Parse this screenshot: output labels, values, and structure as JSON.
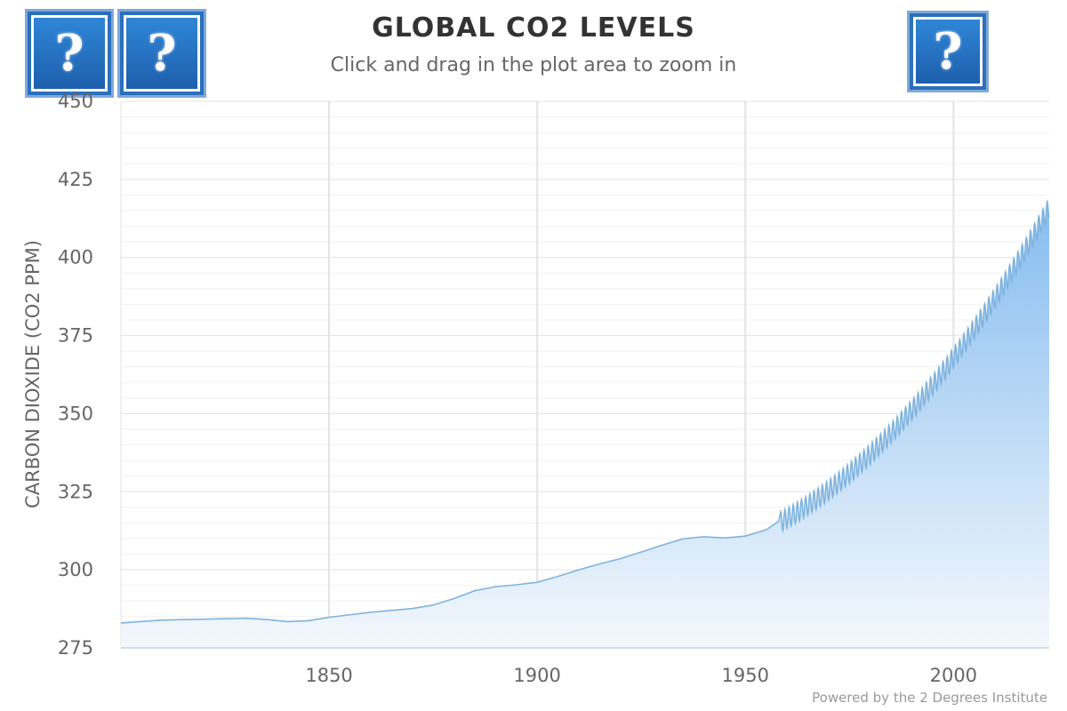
{
  "chart_data": {
    "type": "area",
    "title": "GLOBAL CO2 LEVELS",
    "subtitle": "Click and drag in the plot area to zoom in",
    "ylabel": "CARBON DIOXIDE (CO2 PPM)",
    "xlabel": "",
    "xlim": [
      1800,
      2023
    ],
    "ylim": [
      275,
      450
    ],
    "x_ticks": [
      1850,
      1900,
      1950,
      2000
    ],
    "y_ticks": [
      275,
      300,
      325,
      350,
      375,
      400,
      425,
      450
    ],
    "grid": true,
    "colors": {
      "line": "#7fb3de",
      "area_top": "#86bcf0",
      "area_bottom": "#f4f8fc",
      "grid_major": "#e3e3e3",
      "grid_minor": "#f1f1f1"
    },
    "series": [
      {
        "x": [
          1800,
          1810,
          1820,
          1830,
          1835,
          1840,
          1845,
          1850,
          1860,
          1870,
          1875,
          1880,
          1885,
          1890,
          1895,
          1900,
          1905,
          1910,
          1915,
          1920,
          1925,
          1930,
          1935,
          1940,
          1945,
          1950,
          1955,
          1958
        ],
        "y": [
          283.0,
          283.9,
          284.2,
          284.5,
          284.1,
          283.4,
          283.7,
          284.8,
          286.4,
          287.6,
          288.7,
          290.8,
          293.3,
          294.6,
          295.2,
          296.0,
          297.9,
          300.0,
          301.9,
          303.6,
          305.7,
          307.9,
          309.9,
          310.6,
          310.2,
          310.8,
          312.8,
          315.5
        ]
      }
    ],
    "seasonal": {
      "start_year": 1958.5,
      "end_year": 2023,
      "amplitude": 3.2
    }
  },
  "help_buttons": [
    {
      "icon": "help-question-icon",
      "label": "?"
    },
    {
      "icon": "help-question-icon",
      "label": "?"
    },
    {
      "icon": "help-question-icon",
      "label": "?"
    }
  ],
  "credit": "Powered by the 2 Degrees Institute"
}
